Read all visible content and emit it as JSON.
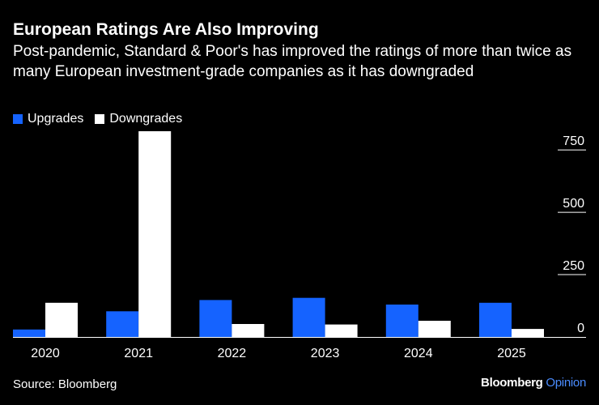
{
  "colors": {
    "background": "#000000",
    "upgrades": "#1563ff",
    "downgrades": "#ffffff",
    "text": "#ffffff",
    "opinion": "#4a8cff"
  },
  "header": {
    "title": "European Ratings Are Also Improving",
    "subtitle": "Post-pandemic, Standard & Poor's has improved the ratings of more than twice as many European investment-grade companies as it has downgraded"
  },
  "legend": {
    "upgrades_label": "Upgrades",
    "downgrades_label": "Downgrades"
  },
  "footer": {
    "source": "Source: Bloomberg",
    "brand": "Bloomberg",
    "brand_suffix": "Opinion"
  },
  "chart_data": {
    "type": "bar",
    "title": "European Ratings Are Also Improving",
    "categories": [
      "2020",
      "2021",
      "2022",
      "2023",
      "2024",
      "2025"
    ],
    "series": [
      {
        "name": "Upgrades",
        "values": [
          30,
          103,
          148,
          157,
          130,
          137
        ]
      },
      {
        "name": "Downgrades",
        "values": [
          137,
          825,
          52,
          50,
          65,
          32
        ]
      }
    ],
    "yticks": [
      0,
      250,
      500,
      750
    ],
    "ylim": [
      0,
      825
    ],
    "xlabel": "",
    "ylabel": "",
    "y_axis_side": "right",
    "legend_position": "top-left"
  }
}
